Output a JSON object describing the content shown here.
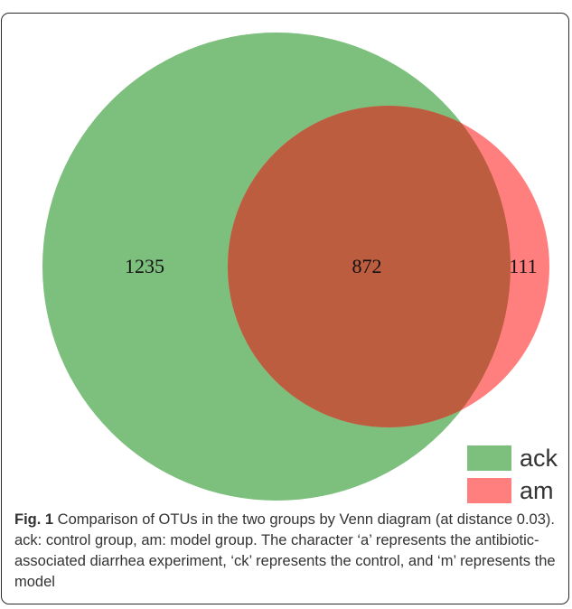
{
  "venn": {
    "sets": [
      {
        "name": "ack",
        "color": "#7dbf7d"
      },
      {
        "name": "am",
        "color": "#ff7f7f"
      }
    ],
    "regions": [
      {
        "sets": [
          "ack"
        ],
        "count": "1235"
      },
      {
        "sets": [
          "ack",
          "am"
        ],
        "count": "872"
      },
      {
        "sets": [
          "am"
        ],
        "count": "111"
      }
    ],
    "overlap_color": "#bc5d3f"
  },
  "legend": {
    "items": [
      {
        "label": "ack",
        "color": "#7dbf7d"
      },
      {
        "label": "am",
        "color": "#ff7f7f"
      }
    ]
  },
  "caption": {
    "figure_label": "Fig. 1",
    "text": " Comparison of OTUs in the two groups by Venn diagram (at distance 0.03). ack: control group, am: model group. The character ‘a’ represents the antibiotic-associated diarrhea experiment, ‘ck’ represents the control, and ‘m’ represents the model"
  }
}
